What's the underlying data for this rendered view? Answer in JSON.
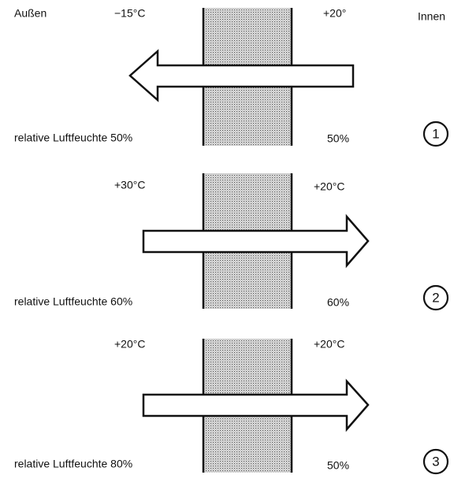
{
  "header": {
    "outside": "Außen",
    "inside": "Innen"
  },
  "panels": [
    {
      "outside_temp": "−15°C",
      "inside_temp": "+20°",
      "outside_humidity": "relative Luftfeuchte 50%",
      "inside_humidity": "50%",
      "number": "1"
    },
    {
      "outside_temp": "+30°C",
      "inside_temp": "+20°C",
      "outside_humidity": "relative Luftfeuchte 60%",
      "inside_humidity": "60%",
      "number": "2"
    },
    {
      "outside_temp": "+20°C",
      "inside_temp": "+20°C",
      "outside_humidity": "relative Luftfeuchte 80%",
      "inside_humidity": "50%",
      "number": "3"
    }
  ]
}
